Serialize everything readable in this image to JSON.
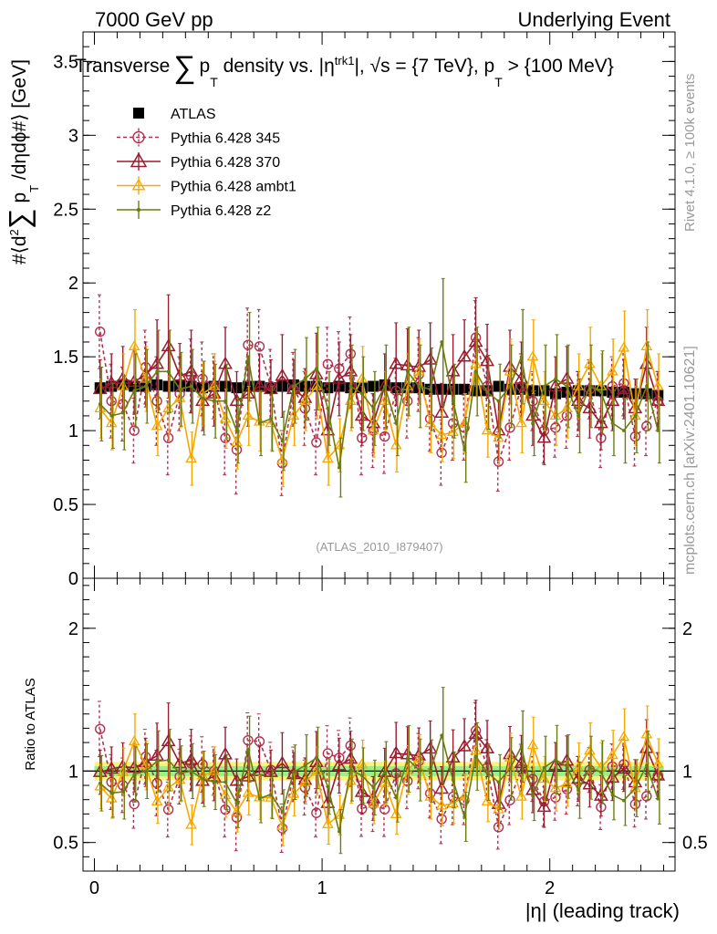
{
  "header": {
    "left": "7000 GeV pp",
    "right": "Underlying Event"
  },
  "side": {
    "right_top": "Rivet 4.1.0, ≥ 100k events",
    "right_bottom": "mcplots.cern.ch [arXiv:2401.10621]"
  },
  "chart_data": [
    {
      "type": "line",
      "title": "Transverse ∑ p_T density vs. |η^trk1|, √s = {7 TeV}, p_T > {100 MeV}",
      "title_parts": {
        "t1": "Transverse",
        "sum": "∑",
        "p": "p",
        "T": "T",
        "t2": " density vs. |η",
        "sup": "trk1",
        "t3": "|, √s = {7 TeV}, p",
        "T2": "T",
        "t4": " > {100 MeV}"
      },
      "ylabel_parts": {
        "pre": "#⟨d",
        "two": "2",
        "sum": "∑",
        "p": " p",
        "T": "T",
        "post": " /dηdϕ#⟩ [GeV]"
      },
      "xlabel": "|η| (leading track)",
      "analysis_tag": "(ATLAS_2010_I879407)",
      "xlim": [
        -0.05,
        2.55
      ],
      "ylim": [
        0,
        3.7
      ],
      "yticks": [
        0,
        0.5,
        1,
        1.5,
        2,
        2.5,
        3,
        3.5
      ],
      "ytick_labels": [
        "0",
        "0.5",
        "1",
        "1.5",
        "2",
        "2.5",
        "3",
        "3.5"
      ],
      "x": [
        0.025,
        0.075,
        0.125,
        0.175,
        0.225,
        0.275,
        0.325,
        0.375,
        0.425,
        0.475,
        0.525,
        0.575,
        0.625,
        0.675,
        0.725,
        0.775,
        0.825,
        0.875,
        0.925,
        0.975,
        1.025,
        1.075,
        1.125,
        1.175,
        1.225,
        1.275,
        1.325,
        1.375,
        1.425,
        1.475,
        1.525,
        1.575,
        1.625,
        1.675,
        1.725,
        1.775,
        1.825,
        1.875,
        1.925,
        1.975,
        2.025,
        2.075,
        2.125,
        2.175,
        2.225,
        2.275,
        2.325,
        2.375,
        2.425,
        2.475
      ],
      "series": [
        {
          "name": "ATLAS",
          "style": "data",
          "color": "#000000",
          "values": [
            1.29,
            1.3,
            1.31,
            1.3,
            1.3,
            1.31,
            1.3,
            1.3,
            1.3,
            1.29,
            1.3,
            1.3,
            1.29,
            1.3,
            1.3,
            1.29,
            1.3,
            1.31,
            1.3,
            1.3,
            1.29,
            1.3,
            1.29,
            1.29,
            1.3,
            1.31,
            1.29,
            1.29,
            1.29,
            1.28,
            1.28,
            1.28,
            1.28,
            1.27,
            1.27,
            1.3,
            1.28,
            1.28,
            1.27,
            1.27,
            1.25,
            1.26,
            1.27,
            1.27,
            1.27,
            1.26,
            1.26,
            1.25,
            1.25,
            1.24
          ]
        },
        {
          "name": "Pythia 6.428 345",
          "style": "circle-dashed",
          "color": "#b03050",
          "values": [
            1.67,
            1.2,
            1.18,
            1.0,
            1.43,
            1.2,
            0.95,
            1.25,
            1.37,
            1.35,
            1.3,
            0.95,
            0.87,
            1.58,
            1.57,
            1.3,
            0.78,
            1.28,
            1.15,
            0.92,
            1.45,
            1.42,
            1.52,
            0.95,
            1.0,
            0.96,
            1.27,
            1.2,
            1.38,
            1.08,
            0.85,
            1.05,
            1.02,
            1.63,
            1.3,
            0.79,
            1.02,
            1.3,
            1.2,
            1.0,
            1.02,
            1.1,
            1.18,
            1.28,
            0.95,
            1.3,
            1.32,
            0.96,
            1.03,
            1.2
          ],
          "errors": [
            0.25,
            0.25,
            0.25,
            0.22,
            0.25,
            0.3,
            0.25,
            0.25,
            0.25,
            0.25,
            0.22,
            0.25,
            0.3,
            0.25,
            0.25,
            0.25,
            0.22,
            0.25,
            0.25,
            0.22,
            0.25,
            0.25,
            0.25,
            0.25,
            0.25,
            0.25,
            0.22,
            0.25,
            0.25,
            0.22,
            0.22,
            0.25,
            0.22,
            0.25,
            0.25,
            0.2,
            0.22,
            0.22,
            0.2,
            0.22,
            0.2,
            0.22,
            0.22,
            0.2,
            0.2,
            0.2,
            0.22,
            0.2,
            0.2,
            0.2
          ]
        },
        {
          "name": "Pythia 6.428 370",
          "style": "triangle",
          "color": "#9a1b2f",
          "values": [
            1.28,
            1.32,
            1.35,
            1.33,
            1.38,
            1.45,
            1.57,
            1.37,
            1.4,
            1.2,
            1.25,
            1.45,
            1.2,
            1.25,
            1.3,
            1.28,
            1.37,
            1.28,
            1.22,
            1.38,
            1.0,
            1.35,
            1.4,
            1.1,
            1.05,
            1.3,
            1.45,
            1.44,
            1.43,
            1.48,
            1.12,
            1.4,
            1.5,
            1.6,
            1.47,
            1.0,
            1.43,
            1.35,
            1.1,
            0.95,
            1.3,
            1.35,
            1.2,
            1.15,
            1.05,
            1.2,
            1.28,
            1.15,
            1.45,
            1.2
          ],
          "errors": [
            0.2,
            0.2,
            0.22,
            0.22,
            0.22,
            0.3,
            0.35,
            0.22,
            0.28,
            0.2,
            0.22,
            0.25,
            0.2,
            0.22,
            0.22,
            0.2,
            0.28,
            0.2,
            0.2,
            0.28,
            0.15,
            0.25,
            0.25,
            0.2,
            0.2,
            0.22,
            0.28,
            0.25,
            0.25,
            0.25,
            0.2,
            0.25,
            0.25,
            0.3,
            0.25,
            0.2,
            0.25,
            0.25,
            0.2,
            0.18,
            0.2,
            0.22,
            0.2,
            0.2,
            0.18,
            0.2,
            0.2,
            0.2,
            0.25,
            0.2
          ]
        },
        {
          "name": "Pythia 6.428 ambt1",
          "style": "triangle-small",
          "color": "#f5a800",
          "values": [
            1.15,
            1.05,
            1.3,
            1.57,
            1.35,
            1.03,
            1.15,
            1.22,
            0.81,
            1.25,
            1.3,
            1.08,
            0.92,
            1.1,
            1.06,
            1.05,
            0.8,
            1.1,
            1.2,
            1.3,
            0.81,
            0.9,
            1.2,
            1.35,
            1.0,
            1.2,
            0.9,
            1.3,
            1.4,
            1.05,
            0.97,
            0.99,
            1.05,
            1.45,
            1.0,
            0.95,
            1.4,
            1.05,
            1.5,
            1.2,
            1.1,
            1.15,
            1.3,
            1.45,
            1.3,
            1.4,
            1.56,
            1.1,
            1.57,
            1.3
          ],
          "errors": [
            0.2,
            0.18,
            0.22,
            0.25,
            0.22,
            0.2,
            0.22,
            0.2,
            0.18,
            0.22,
            0.22,
            0.2,
            0.18,
            0.2,
            0.2,
            0.18,
            0.18,
            0.2,
            0.2,
            0.22,
            0.18,
            0.18,
            0.2,
            0.22,
            0.18,
            0.2,
            0.18,
            0.22,
            0.22,
            0.2,
            0.18,
            0.18,
            0.2,
            0.22,
            0.18,
            0.18,
            0.22,
            0.2,
            0.25,
            0.2,
            0.2,
            0.2,
            0.22,
            0.25,
            0.22,
            0.22,
            0.25,
            0.2,
            0.25,
            0.22
          ]
        },
        {
          "name": "Pythia 6.428 z2",
          "style": "dot",
          "color": "#6b7d10",
          "values": [
            1.18,
            1.1,
            1.12,
            1.27,
            1.3,
            1.4,
            1.4,
            1.28,
            1.3,
            1.22,
            1.2,
            1.2,
            1.0,
            1.5,
            1.05,
            1.08,
            0.93,
            1.3,
            1.35,
            1.42,
            1.15,
            0.75,
            1.3,
            1.25,
            1.15,
            1.3,
            1.05,
            1.4,
            1.3,
            1.28,
            1.6,
            1.2,
            0.87,
            1.4,
            1.26,
            1.2,
            1.3,
            1.5,
            1.05,
            1.3,
            1.35,
            1.3,
            1.1,
            1.3,
            1.26,
            1.05,
            1.0,
            1.1,
            1.3,
            1.0
          ],
          "errors": [
            0.25,
            0.22,
            0.25,
            0.25,
            0.25,
            0.28,
            0.28,
            0.25,
            0.25,
            0.25,
            0.25,
            0.25,
            0.22,
            0.3,
            0.22,
            0.22,
            0.2,
            0.25,
            0.28,
            0.28,
            0.25,
            0.2,
            0.28,
            0.25,
            0.25,
            0.28,
            0.22,
            0.3,
            0.28,
            0.28,
            0.43,
            0.25,
            0.22,
            0.3,
            0.25,
            0.25,
            0.28,
            0.32,
            0.22,
            0.28,
            0.3,
            0.28,
            0.25,
            0.28,
            0.28,
            0.22,
            0.22,
            0.25,
            0.3,
            0.22
          ]
        }
      ]
    },
    {
      "type": "line",
      "ylabel": "Ratio to ATLAS",
      "ylim": [
        0.3,
        2.35
      ],
      "yticks": [
        0.5,
        1,
        2
      ],
      "ytick_labels": [
        "0.5",
        "1",
        "2"
      ],
      "xticks": [
        0,
        1,
        2
      ],
      "xtick_labels": [
        "0",
        "1",
        "2"
      ],
      "bands": [
        {
          "name": "ATLAS total uncertainty",
          "lo": 0.935,
          "hi": 1.065,
          "color": "#ffee66"
        },
        {
          "name": "ATLAS stat. uncertainty",
          "lo": 0.965,
          "hi": 1.035,
          "color": "#88ee88"
        }
      ],
      "reference_line": 1
    }
  ]
}
